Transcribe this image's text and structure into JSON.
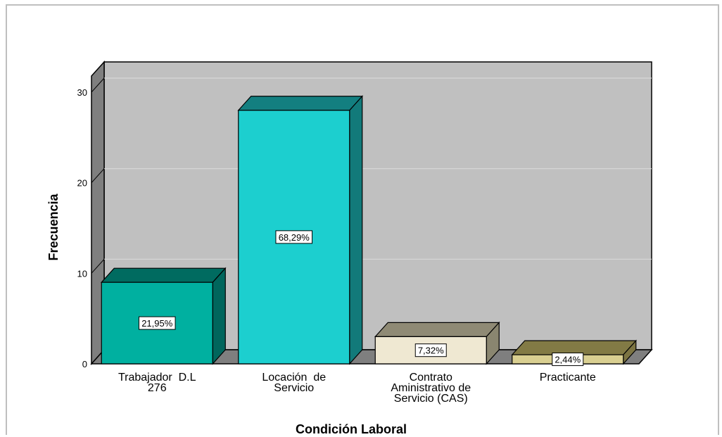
{
  "chart_data": {
    "type": "bar",
    "xlabel": "Condición Laboral",
    "ylabel": "Frecuencia",
    "ylim": [
      0,
      30
    ],
    "yticks": [
      "0",
      "10",
      "20",
      "30"
    ],
    "grid": true,
    "bar3d": true,
    "categories": [
      [
        "Trabajador  D.L",
        "276"
      ],
      [
        "Locación  de",
        "Servicio"
      ],
      [
        "Contrato",
        "Aministrativo de",
        "Servicio (CAS)"
      ],
      [
        "Practicante"
      ]
    ],
    "values": [
      9,
      28,
      3,
      1
    ],
    "data_labels": [
      "21,95%",
      "68,29%",
      "7,32%",
      "2,44%"
    ],
    "colors": {
      "bars": [
        "#00b0a0",
        "#1ccfcf",
        "#efe8d2",
        "#d9cf91"
      ],
      "tops": [
        "#006b60",
        "#137f80",
        "#8f8a75",
        "#827a45"
      ],
      "sides": [
        "#00665c",
        "#127a7a",
        "#8a8670",
        "#7c7442"
      ],
      "wall": "#c0c0c0",
      "floor": "#7f7f7f",
      "side_wall": "#7f7f7f",
      "grid": "#d8d8d8"
    }
  }
}
